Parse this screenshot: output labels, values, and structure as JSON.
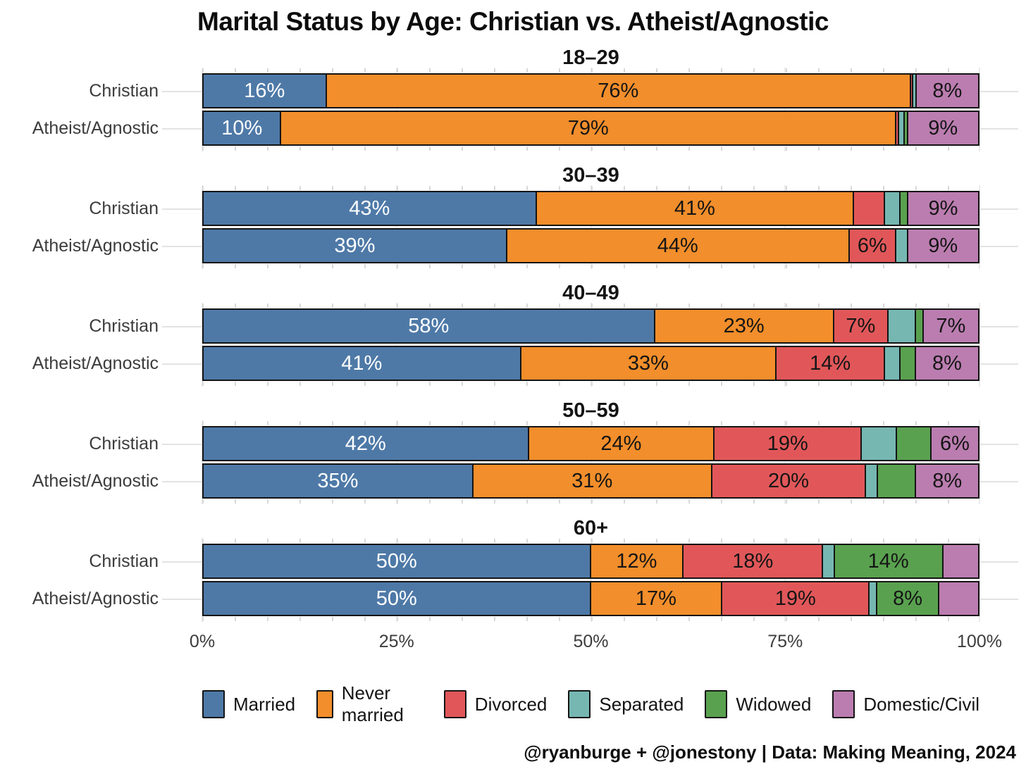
{
  "title": "Marital Status by Age: Christian vs. Atheist/Agnostic",
  "footer_credit": "@ryanburge + @jonestony | Data: Making Meaning, 2024",
  "palette": {
    "married": "#4E79A7",
    "never_married": "#F28E2B",
    "divorced": "#E15759",
    "separated": "#76B7B2",
    "widowed": "#59A14F",
    "domestic_civil": "#BB7DB0"
  },
  "legend": {
    "items": [
      {
        "key": "married",
        "label": "Married"
      },
      {
        "key": "never_married",
        "label": "Never married"
      },
      {
        "key": "divorced",
        "label": "Divorced"
      },
      {
        "key": "separated",
        "label": "Separated"
      },
      {
        "key": "widowed",
        "label": "Widowed"
      },
      {
        "key": "domestic_civil",
        "label": "Domestic/Civil"
      }
    ]
  },
  "x_axis": {
    "ticks": [
      {
        "label": "0%",
        "value": 0
      },
      {
        "label": "25%",
        "value": 25
      },
      {
        "label": "50%",
        "value": 50
      },
      {
        "label": "75%",
        "value": 75
      },
      {
        "label": "100%",
        "value": 100
      }
    ]
  },
  "chart_data": {
    "type": "bar",
    "orientation": "horizontal",
    "stacked": true,
    "units": "percent",
    "xlim": [
      0,
      100
    ],
    "title": "Marital Status by Age: Christian vs. Atheist/Agnostic",
    "series_order": [
      "married",
      "never_married",
      "divorced",
      "separated",
      "widowed",
      "domestic_civil"
    ],
    "label_rule": "segment percentage labels shown only when value >= 6",
    "label_text_colors": {
      "married": "#ffffff",
      "default": "#151515"
    },
    "facets": [
      {
        "age": "18–29",
        "rows": [
          {
            "group": "Christian",
            "values": {
              "married": 16,
              "never_married": 76,
              "divorced": 0.3,
              "separated": 0.4,
              "widowed": 0,
              "domestic_civil": 8
            }
          },
          {
            "group": "Atheist/Agnostic",
            "values": {
              "married": 10,
              "never_married": 79,
              "divorced": 0.4,
              "separated": 0.7,
              "widowed": 0.4,
              "domestic_civil": 9
            }
          }
        ]
      },
      {
        "age": "30–39",
        "rows": [
          {
            "group": "Christian",
            "values": {
              "married": 43,
              "never_married": 41,
              "divorced": 4,
              "separated": 2,
              "widowed": 1,
              "domestic_civil": 9
            }
          },
          {
            "group": "Atheist/Agnostic",
            "values": {
              "married": 39,
              "never_married": 44,
              "divorced": 6,
              "separated": 1.5,
              "widowed": 0,
              "domestic_civil": 9
            }
          }
        ]
      },
      {
        "age": "40–49",
        "rows": [
          {
            "group": "Christian",
            "values": {
              "married": 58,
              "never_married": 23,
              "divorced": 7,
              "separated": 3.5,
              "widowed": 1,
              "domestic_civil": 7
            }
          },
          {
            "group": "Atheist/Agnostic",
            "values": {
              "married": 41,
              "never_married": 33,
              "divorced": 14,
              "separated": 2,
              "widowed": 2,
              "domestic_civil": 8
            }
          }
        ]
      },
      {
        "age": "50–59",
        "rows": [
          {
            "group": "Christian",
            "values": {
              "married": 42,
              "never_married": 24,
              "divorced": 19,
              "separated": 4.5,
              "widowed": 4.5,
              "domestic_civil": 6
            }
          },
          {
            "group": "Atheist/Agnostic",
            "values": {
              "married": 35,
              "never_married": 31,
              "divorced": 20,
              "separated": 1.5,
              "widowed": 5,
              "domestic_civil": 8
            }
          }
        ]
      },
      {
        "age": "60+",
        "rows": [
          {
            "group": "Christian",
            "values": {
              "married": 50,
              "never_married": 12,
              "divorced": 18,
              "separated": 1.5,
              "widowed": 14,
              "domestic_civil": 4.5
            }
          },
          {
            "group": "Atheist/Agnostic",
            "values": {
              "married": 50,
              "never_married": 17,
              "divorced": 19,
              "separated": 1,
              "widowed": 8,
              "domestic_civil": 5
            }
          }
        ]
      }
    ]
  }
}
